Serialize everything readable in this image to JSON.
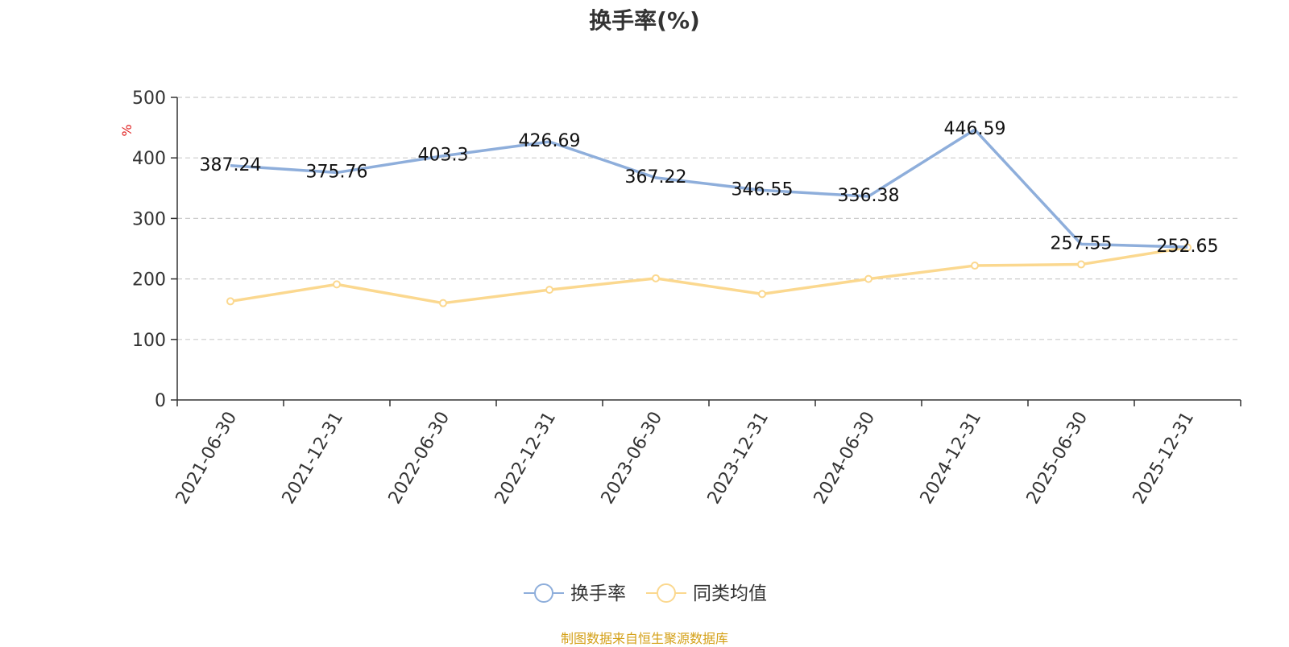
{
  "chart_data": {
    "type": "line",
    "title": "换手率(%)",
    "ylabel": "%",
    "xlabel": "",
    "ylim": [
      0,
      500
    ],
    "yticks": [
      0,
      100,
      200,
      300,
      400,
      500
    ],
    "grid": true,
    "legend_position": "bottom-center",
    "categories": [
      "2021-06-30",
      "2021-12-31",
      "2022-06-30",
      "2022-12-31",
      "2023-06-30",
      "2023-12-31",
      "2024-06-30",
      "2024-12-31",
      "2025-06-30",
      "2025-12-31"
    ],
    "series": [
      {
        "name": "换手率",
        "color": "#8eaedb",
        "values": [
          387.24,
          375.76,
          403.3,
          426.69,
          367.22,
          346.55,
          336.38,
          446.59,
          257.55,
          252.65
        ],
        "labels": [
          "387.24",
          "375.76",
          "403.3",
          "426.69",
          "367.22",
          "346.55",
          "336.38",
          "446.59",
          "257.55",
          "252.65"
        ]
      },
      {
        "name": "同类均值",
        "color": "#fbd88f",
        "values": [
          163,
          191,
          160,
          182,
          201,
          175,
          200,
          222,
          224,
          252
        ]
      }
    ]
  },
  "source": "制图数据来自恒生聚源数据库"
}
